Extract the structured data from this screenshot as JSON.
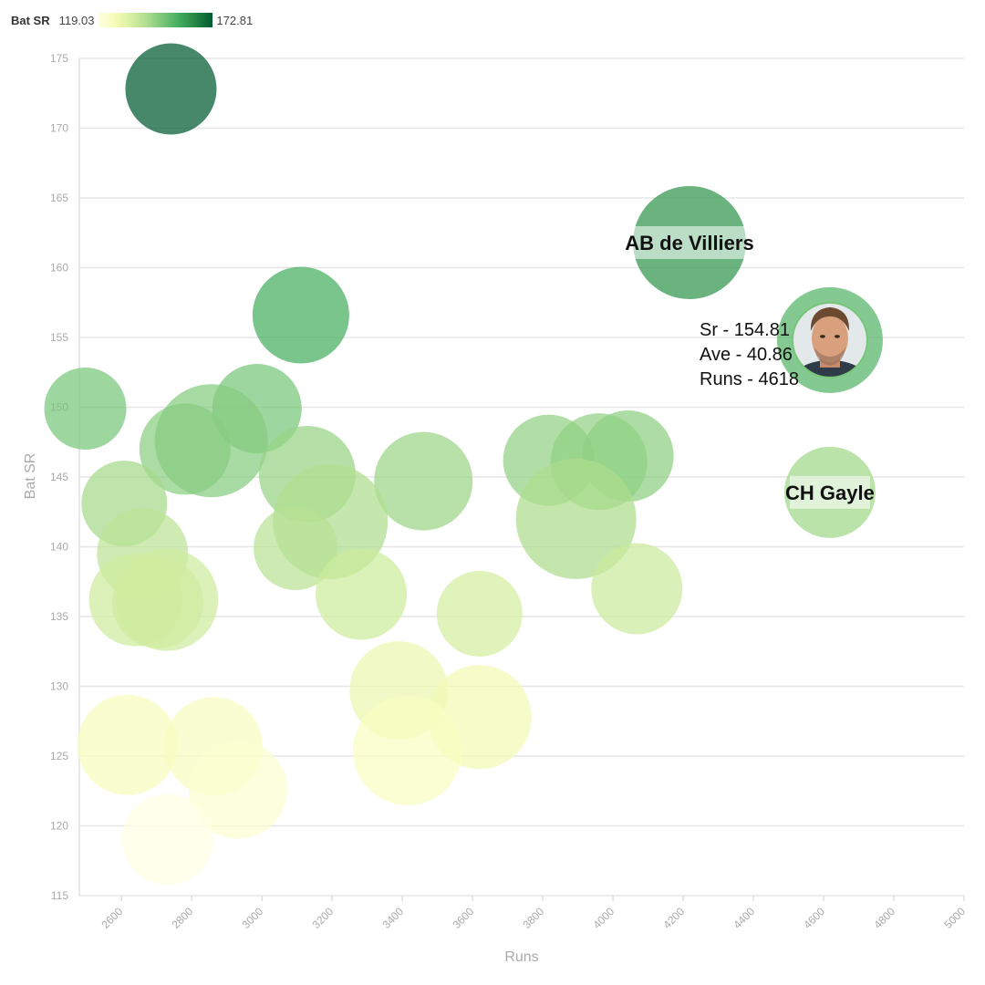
{
  "legend": {
    "title": "Bat SR",
    "min": "119.03",
    "max": "172.81"
  },
  "colors": {
    "scale": [
      "#ffffe5",
      "#f7fcb9",
      "#d9f0a3",
      "#addd8e",
      "#78c679",
      "#41ab5d",
      "#238443",
      "#005a32"
    ],
    "grid": "#e6e6e6",
    "axis_text": "#aaaaaa"
  },
  "chart_data": {
    "type": "scatter",
    "xlabel": "Runs",
    "ylabel": "Bat SR",
    "xlim": [
      2480,
      5000
    ],
    "ylim": [
      115,
      175
    ],
    "xticks": [
      2600,
      2800,
      3000,
      3200,
      3400,
      3600,
      3800,
      4000,
      4200,
      4400,
      4600,
      4800,
      5000
    ],
    "yticks": [
      115,
      120,
      125,
      130,
      135,
      140,
      145,
      150,
      155,
      160,
      165,
      170,
      175
    ],
    "size_note": "bubble radius in chart represents a secondary measure",
    "points": [
      {
        "x": 2741,
        "y": 172.81,
        "s": 50
      },
      {
        "x": 4218,
        "y": 161.8,
        "s": 62,
        "label": "AB de Villiers"
      },
      {
        "x": 3111,
        "y": 156.6,
        "s": 53
      },
      {
        "x": 4618,
        "y": 154.81,
        "s": 58,
        "highlight": true
      },
      {
        "x": 2497,
        "y": 149.9,
        "s": 45
      },
      {
        "x": 2986,
        "y": 149.9,
        "s": 49
      },
      {
        "x": 2781,
        "y": 147.0,
        "s": 50
      },
      {
        "x": 2856,
        "y": 147.6,
        "s": 62
      },
      {
        "x": 3129,
        "y": 145.2,
        "s": 53
      },
      {
        "x": 3460,
        "y": 144.7,
        "s": 54
      },
      {
        "x": 3817,
        "y": 146.2,
        "s": 50
      },
      {
        "x": 3960,
        "y": 146.1,
        "s": 53
      },
      {
        "x": 4043,
        "y": 146.5,
        "s": 50
      },
      {
        "x": 2608,
        "y": 143.1,
        "s": 47
      },
      {
        "x": 4618,
        "y": 143.9,
        "s": 50,
        "label": "CH Gayle"
      },
      {
        "x": 3195,
        "y": 141.8,
        "s": 63
      },
      {
        "x": 3895,
        "y": 142.0,
        "s": 66
      },
      {
        "x": 2660,
        "y": 139.5,
        "s": 50
      },
      {
        "x": 3096,
        "y": 139.9,
        "s": 46
      },
      {
        "x": 2703,
        "y": 136.0,
        "s": 50
      },
      {
        "x": 2640,
        "y": 136.2,
        "s": 51
      },
      {
        "x": 2730,
        "y": 136.2,
        "s": 56
      },
      {
        "x": 3283,
        "y": 136.6,
        "s": 50
      },
      {
        "x": 3620,
        "y": 135.2,
        "s": 47
      },
      {
        "x": 4068,
        "y": 137.0,
        "s": 50
      },
      {
        "x": 3390,
        "y": 129.7,
        "s": 54
      },
      {
        "x": 3620,
        "y": 127.8,
        "s": 57
      },
      {
        "x": 3415,
        "y": 125.4,
        "s": 60
      },
      {
        "x": 2617,
        "y": 125.8,
        "s": 55
      },
      {
        "x": 2862,
        "y": 125.7,
        "s": 54
      },
      {
        "x": 2932,
        "y": 122.6,
        "s": 54
      },
      {
        "x": 2732,
        "y": 119.03,
        "s": 50
      }
    ],
    "tooltip": {
      "lines": [
        "Sr - 154.81",
        "Ave - 40.86",
        "Runs - 4618"
      ]
    }
  }
}
